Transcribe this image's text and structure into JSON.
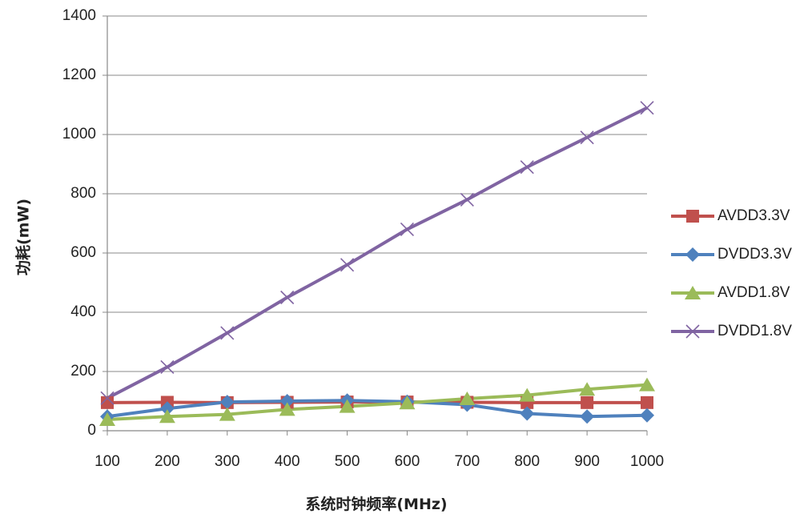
{
  "chart_data": {
    "type": "line",
    "title": "",
    "xlabel": "系统时钟频率(MHz)",
    "ylabel": "功耗(mW)",
    "x": [
      100,
      200,
      300,
      400,
      500,
      600,
      700,
      800,
      900,
      1000
    ],
    "ylim": [
      0,
      1400
    ],
    "yticks": [
      0,
      200,
      400,
      600,
      800,
      1000,
      1200,
      1400
    ],
    "grid": "horizontal",
    "legend_position": "right",
    "series": [
      {
        "name": "AVDD3.3V",
        "color": "#c0504d",
        "marker": "square",
        "values": [
          95,
          96,
          95,
          96,
          97,
          97,
          96,
          95,
          95,
          95
        ]
      },
      {
        "name": "DVDD3.3V",
        "color": "#4f81bd",
        "marker": "diamond",
        "values": [
          48,
          75,
          97,
          100,
          102,
          98,
          88,
          58,
          48,
          52
        ]
      },
      {
        "name": "AVDD1.8V",
        "color": "#9bbb59",
        "marker": "triangle",
        "values": [
          38,
          48,
          55,
          72,
          82,
          94,
          108,
          120,
          140,
          155
        ]
      },
      {
        "name": "DVDD1.8V",
        "color": "#8064a2",
        "marker": "x",
        "values": [
          110,
          215,
          330,
          450,
          560,
          680,
          780,
          890,
          990,
          1090
        ]
      }
    ]
  }
}
